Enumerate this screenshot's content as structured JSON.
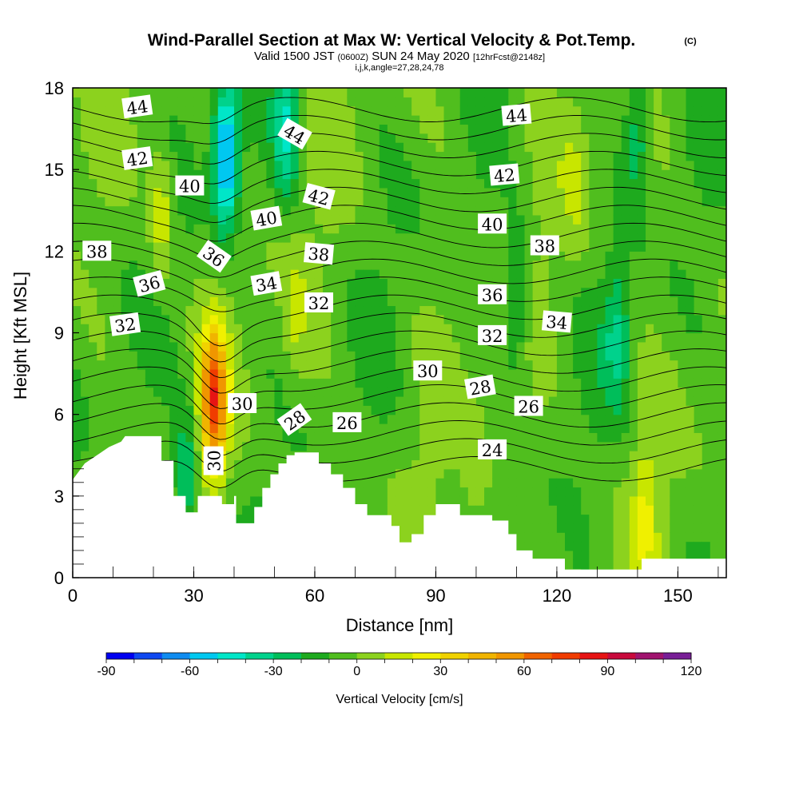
{
  "chart_data": {
    "type": "heatmap",
    "title": "Wind-Parallel Section at Max W: Vertical Velocity & Pot.Temp.",
    "title_mark": "(C)",
    "subtitle_parts": [
      "Valid 1500 JST ",
      "(0600Z)",
      " SUN 24 May 2020 ",
      "[12hrFcst@2148z]"
    ],
    "subtitle2": "i,j,k,angle=27,28,24,78",
    "xlabel": "Distance [nm]",
    "ylabel": "Height [Kft MSL]",
    "xlim": [
      0,
      162
    ],
    "ylim": [
      0,
      18
    ],
    "x_ticks": [
      "0",
      "30",
      "60",
      "90",
      "120",
      "150"
    ],
    "y_ticks": [
      "0",
      "3",
      "6",
      "9",
      "12",
      "15",
      "18"
    ],
    "grid": false,
    "colorbar": {
      "title": "Vertical Velocity [cm/s]",
      "tick_labels": [
        "-90",
        "-60",
        "-30",
        "0",
        "30",
        "60",
        "90",
        "120"
      ],
      "levels_min": -90,
      "levels_max": 120,
      "colors": [
        "#0000f0",
        "#0f48f0",
        "#0f8cf0",
        "#00c8f0",
        "#00e6c8",
        "#00d28c",
        "#00be5a",
        "#1eaa1e",
        "#50be1e",
        "#8cd21e",
        "#c8e600",
        "#f0f000",
        "#f0d200",
        "#f0b400",
        "#f09600",
        "#f06400",
        "#f03c00",
        "#e61414",
        "#c80a3c",
        "#a0146e",
        "#781e96"
      ]
    },
    "velocity_features": [
      {
        "type": "updraft",
        "x_nm": 35,
        "z_kft": 6.5,
        "w_cms": 75
      },
      {
        "type": "updraft",
        "x_nm": 22,
        "z_kft": 13.5,
        "w_cms": 25
      },
      {
        "type": "downdraft",
        "x_nm": 38,
        "z_kft": 15.5,
        "w_cms": -65
      },
      {
        "type": "downdraft",
        "x_nm": 53,
        "z_kft": 16.5,
        "w_cms": -35
      },
      {
        "type": "downdraft",
        "x_nm": 28,
        "z_kft": 3.5,
        "w_cms": -30
      },
      {
        "type": "updraft",
        "x_nm": 55,
        "z_kft": 9.5,
        "w_cms": 12
      },
      {
        "type": "updraft",
        "x_nm": 100,
        "z_kft": 3.8,
        "w_cms": 12
      },
      {
        "type": "updraft",
        "x_nm": 125,
        "z_kft": 14.5,
        "w_cms": 12
      },
      {
        "type": "downdraft",
        "x_nm": 110,
        "z_kft": 10.5,
        "w_cms": -25
      },
      {
        "type": "downdraft",
        "x_nm": 135,
        "z_kft": 9,
        "w_cms": -25
      },
      {
        "type": "downdraft",
        "x_nm": 140,
        "z_kft": 16.5,
        "w_cms": -25
      },
      {
        "type": "updraft",
        "x_nm": 142,
        "z_kft": 2.5,
        "w_cms": 20
      }
    ],
    "terrain_kft": [
      [
        0,
        3.6
      ],
      [
        3,
        4.2
      ],
      [
        6,
        4.5
      ],
      [
        9,
        4.8
      ],
      [
        12,
        5.0
      ],
      [
        13,
        5.2
      ],
      [
        22,
        5.2
      ],
      [
        22,
        4.3
      ],
      [
        25,
        4.3
      ],
      [
        25,
        3
      ],
      [
        28,
        3
      ],
      [
        28,
        2.4
      ],
      [
        31,
        2.4
      ],
      [
        31,
        3
      ],
      [
        37,
        3
      ],
      [
        37,
        2.7
      ],
      [
        40,
        2.7
      ],
      [
        40,
        3
      ],
      [
        40.5,
        3
      ],
      [
        40.5,
        2
      ],
      [
        45,
        2
      ],
      [
        45,
        2.6
      ],
      [
        47,
        2.6
      ],
      [
        47,
        3.3
      ],
      [
        49,
        3.3
      ],
      [
        49,
        3.8
      ],
      [
        51,
        3.8
      ],
      [
        51,
        4.2
      ],
      [
        53,
        4.2
      ],
      [
        53,
        4.5
      ],
      [
        55,
        4.5
      ],
      [
        55,
        4.6
      ],
      [
        61,
        4.6
      ],
      [
        61,
        4.2
      ],
      [
        64,
        4.2
      ],
      [
        64,
        3.8
      ],
      [
        67,
        3.8
      ],
      [
        67,
        3.3
      ],
      [
        70,
        3.3
      ],
      [
        70,
        2.7
      ],
      [
        73,
        2.7
      ],
      [
        73,
        2.3
      ],
      [
        79,
        2.3
      ],
      [
        79,
        1.9
      ],
      [
        81,
        1.9
      ],
      [
        81,
        1.3
      ],
      [
        84,
        1.3
      ],
      [
        84,
        1.6
      ],
      [
        87,
        1.6
      ],
      [
        87,
        2.3
      ],
      [
        90,
        2.3
      ],
      [
        90,
        2.7
      ],
      [
        96,
        2.7
      ],
      [
        96,
        2.3
      ],
      [
        104,
        2.3
      ],
      [
        104,
        2.1
      ],
      [
        108,
        2.1
      ],
      [
        108,
        1.6
      ],
      [
        110,
        1.6
      ],
      [
        110,
        1.0
      ],
      [
        114,
        1.0
      ],
      [
        114,
        0.7
      ],
      [
        122,
        0.7
      ],
      [
        122,
        0.3
      ],
      [
        141,
        0.3
      ],
      [
        141,
        0.7
      ],
      [
        162,
        0.7
      ]
    ],
    "theta_contours_C": [
      24,
      25,
      26,
      27,
      28,
      29,
      30,
      31,
      32,
      33,
      34,
      35,
      36,
      37,
      38,
      39,
      40,
      41,
      42,
      43,
      44
    ],
    "contour_labels": [
      {
        "text": "44",
        "x_nm": 16,
        "z_kft": 17.3,
        "angle": -8
      },
      {
        "text": "42",
        "x_nm": 16,
        "z_kft": 15.4,
        "angle": -8
      },
      {
        "text": "40",
        "x_nm": 29,
        "z_kft": 14.4,
        "angle": 0
      },
      {
        "text": "38",
        "x_nm": 6,
        "z_kft": 12.0,
        "angle": 0
      },
      {
        "text": "36",
        "x_nm": 19,
        "z_kft": 10.8,
        "angle": -15
      },
      {
        "text": "32",
        "x_nm": 13,
        "z_kft": 9.3,
        "angle": -8
      },
      {
        "text": "44",
        "x_nm": 55,
        "z_kft": 16.3,
        "angle": 30
      },
      {
        "text": "42",
        "x_nm": 61,
        "z_kft": 14.0,
        "angle": 15
      },
      {
        "text": "40",
        "x_nm": 48,
        "z_kft": 13.2,
        "angle": -10
      },
      {
        "text": "36",
        "x_nm": 35,
        "z_kft": 11.8,
        "angle": 35
      },
      {
        "text": "38",
        "x_nm": 61,
        "z_kft": 11.9,
        "angle": 5
      },
      {
        "text": "34",
        "x_nm": 48,
        "z_kft": 10.8,
        "angle": -10
      },
      {
        "text": "32",
        "x_nm": 61,
        "z_kft": 10.1,
        "angle": 0
      },
      {
        "text": "30",
        "x_nm": 42,
        "z_kft": 6.4,
        "angle": 0
      },
      {
        "text": "28",
        "x_nm": 55,
        "z_kft": 5.8,
        "angle": -35
      },
      {
        "text": "26",
        "x_nm": 68,
        "z_kft": 5.7,
        "angle": 0
      },
      {
        "text": "30",
        "x_nm": 35,
        "z_kft": 4.3,
        "angle": -90
      },
      {
        "text": "44",
        "x_nm": 110,
        "z_kft": 17.0,
        "angle": -5
      },
      {
        "text": "42",
        "x_nm": 107,
        "z_kft": 14.8,
        "angle": -5
      },
      {
        "text": "40",
        "x_nm": 104,
        "z_kft": 13.0,
        "angle": 0
      },
      {
        "text": "38",
        "x_nm": 117,
        "z_kft": 12.2,
        "angle": 0
      },
      {
        "text": "36",
        "x_nm": 104,
        "z_kft": 10.4,
        "angle": 0
      },
      {
        "text": "34",
        "x_nm": 120,
        "z_kft": 9.4,
        "angle": 5
      },
      {
        "text": "32",
        "x_nm": 104,
        "z_kft": 8.9,
        "angle": 0
      },
      {
        "text": "30",
        "x_nm": 88,
        "z_kft": 7.6,
        "angle": 0
      },
      {
        "text": "28",
        "x_nm": 101,
        "z_kft": 7.0,
        "angle": -10
      },
      {
        "text": "26",
        "x_nm": 113,
        "z_kft": 6.3,
        "angle": 0
      },
      {
        "text": "24",
        "x_nm": 104,
        "z_kft": 4.7,
        "angle": 0
      }
    ]
  }
}
